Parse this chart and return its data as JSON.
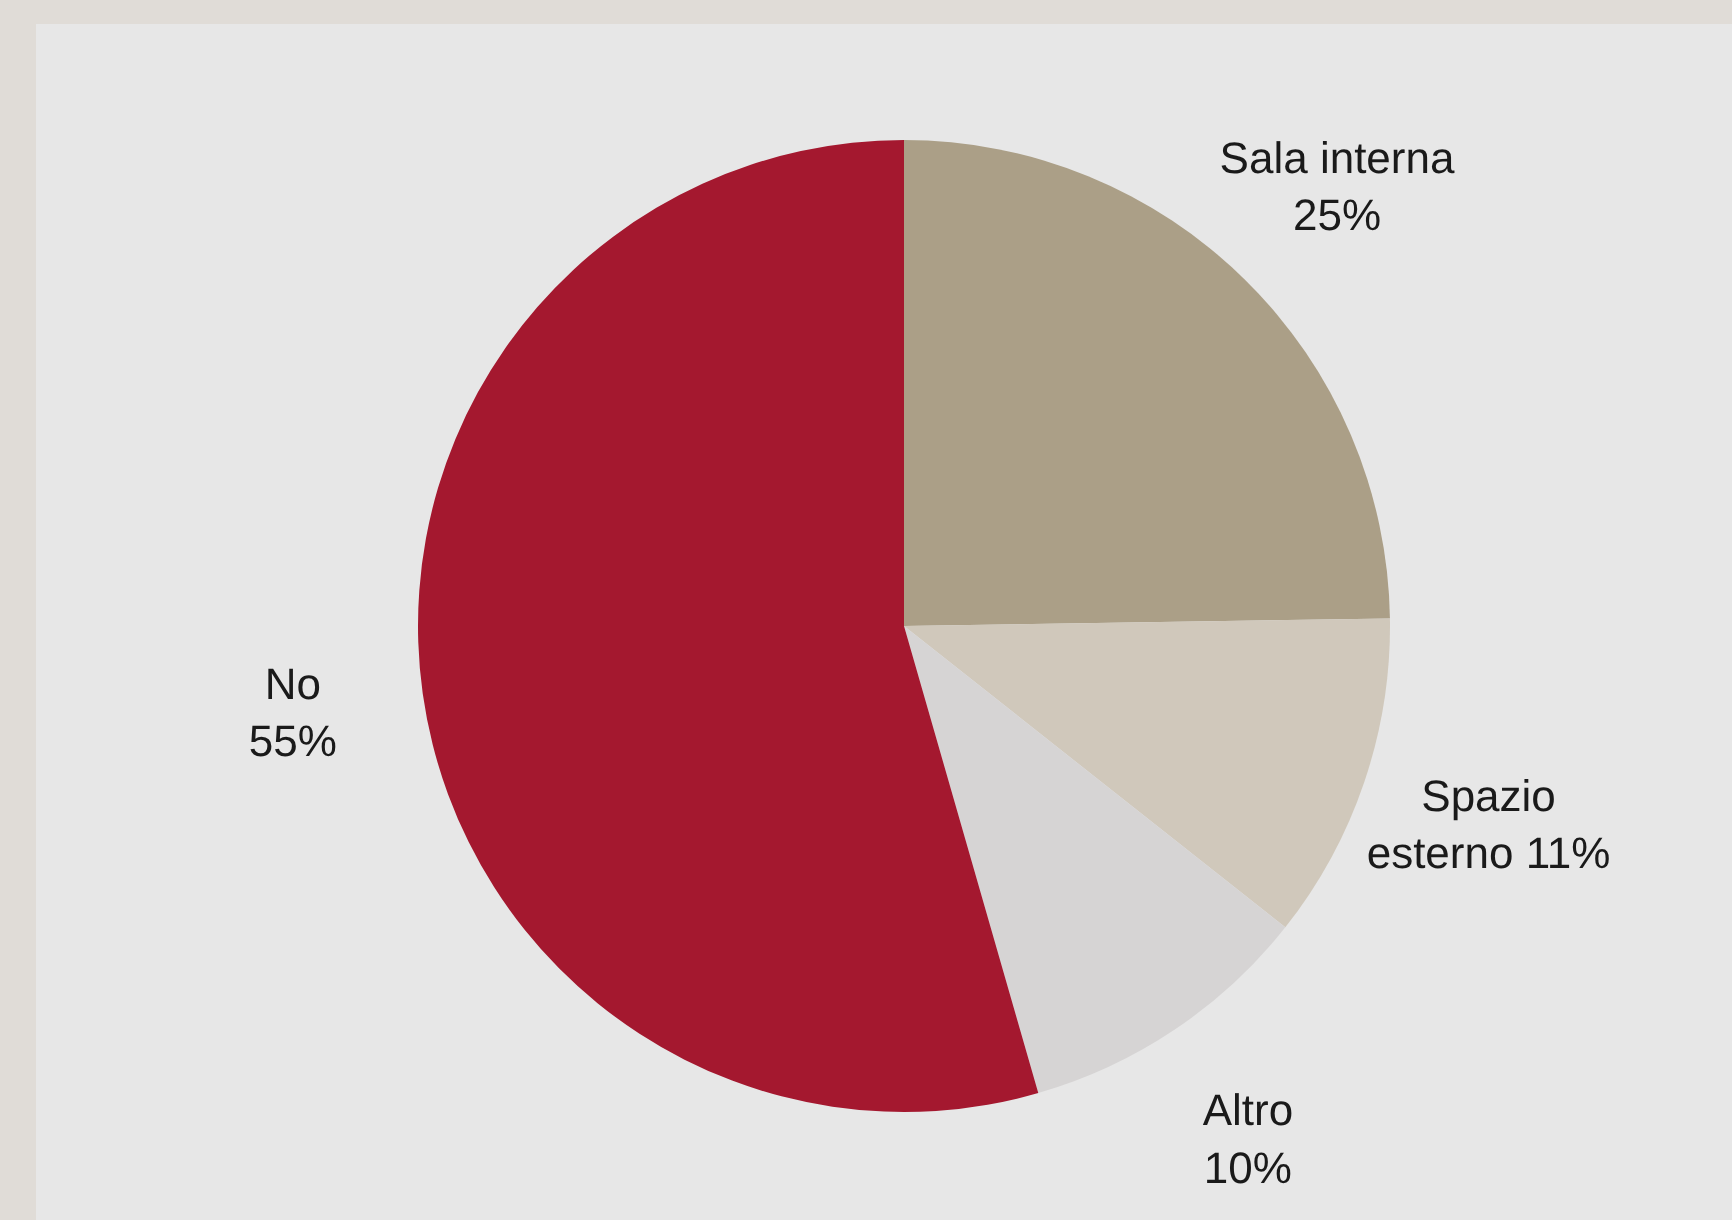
{
  "chart_data": {
    "type": "pie",
    "categories": [
      "Sala interna",
      "Spazio esterno",
      "Altro",
      "No"
    ],
    "values": [
      25,
      11,
      10,
      55
    ],
    "value_labels": [
      "25%",
      "11%",
      "10%",
      "55%"
    ],
    "colors": [
      "#ab9f87",
      "#d0c8bb",
      "#d6d4d4",
      "#a4182f"
    ]
  }
}
